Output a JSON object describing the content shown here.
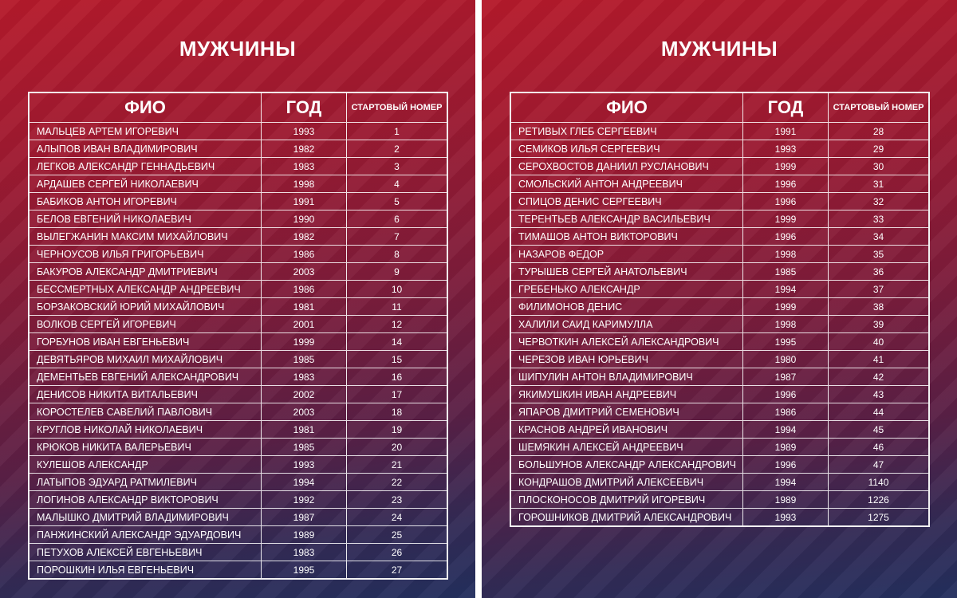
{
  "panels": [
    {
      "title": "МУЖЧИНЫ",
      "headers": {
        "name": "ФИО",
        "year": "ГОД",
        "num": "СТАРТОВЫЙ НОМЕР"
      },
      "rows": [
        [
          "МАЛЬЦЕВ АРТЕМ ИГОРЕВИЧ",
          "1993",
          "1"
        ],
        [
          "АЛЫПОВ ИВАН ВЛАДИМИРОВИЧ",
          "1982",
          "2"
        ],
        [
          "ЛЕГКОВ АЛЕКСАНДР ГЕННАДЬЕВИЧ",
          "1983",
          "3"
        ],
        [
          "АРДАШЕВ СЕРГЕЙ НИКОЛАЕВИЧ",
          "1998",
          "4"
        ],
        [
          "БАБИКОВ АНТОН ИГОРЕВИЧ",
          "1991",
          "5"
        ],
        [
          "БЕЛОВ ЕВГЕНИЙ НИКОЛАЕВИЧ",
          "1990",
          "6"
        ],
        [
          "ВЫЛЕГЖАНИН МАКСИМ МИХАЙЛОВИЧ",
          "1982",
          "7"
        ],
        [
          "ЧЕРНОУСОВ ИЛЬЯ ГРИГОРЬЕВИЧ",
          "1986",
          "8"
        ],
        [
          "БАКУРОВ АЛЕКСАНДР ДМИТРИЕВИЧ",
          "2003",
          "9"
        ],
        [
          "БЕССМЕРТНЫХ АЛЕКСАНДР АНДРЕЕВИЧ",
          "1986",
          "10"
        ],
        [
          "БОРЗАКОВСКИЙ ЮРИЙ МИХАЙЛОВИЧ",
          "1981",
          "11"
        ],
        [
          "ВОЛКОВ СЕРГЕЙ ИГОРЕВИЧ",
          "2001",
          "12"
        ],
        [
          "ГОРБУНОВ ИВАН ЕВГЕНЬЕВИЧ",
          "1999",
          "14"
        ],
        [
          "ДЕВЯТЬЯРОВ МИХАИЛ МИХАЙЛОВИЧ",
          "1985",
          "15"
        ],
        [
          "ДЕМЕНТЬЕВ ЕВГЕНИЙ АЛЕКСАНДРОВИЧ",
          "1983",
          "16"
        ],
        [
          "ДЕНИСОВ НИКИТА ВИТАЛЬЕВИЧ",
          "2002",
          "17"
        ],
        [
          "КОРОСТЕЛЕВ САВЕЛИЙ ПАВЛОВИЧ",
          "2003",
          "18"
        ],
        [
          "КРУГЛОВ НИКОЛАЙ НИКОЛАЕВИЧ",
          "1981",
          "19"
        ],
        [
          "КРЮКОВ НИКИТА ВАЛЕРЬЕВИЧ",
          "1985",
          "20"
        ],
        [
          "КУЛЕШОВ АЛЕКСАНДР",
          "1993",
          "21"
        ],
        [
          "ЛАТЫПОВ ЭДУАРД РАТМИЛЕВИЧ",
          "1994",
          "22"
        ],
        [
          "ЛОГИНОВ АЛЕКСАНДР ВИКТОРОВИЧ",
          "1992",
          "23"
        ],
        [
          "МАЛЫШКО ДМИТРИЙ ВЛАДИМИРОВИЧ",
          "1987",
          "24"
        ],
        [
          "ПАНЖИНСКИЙ АЛЕКСАНДР ЭДУАРДОВИЧ",
          "1989",
          "25"
        ],
        [
          "ПЕТУХОВ АЛЕКСЕЙ ЕВГЕНЬЕВИЧ",
          "1983",
          "26"
        ],
        [
          "ПОРОШКИН ИЛЬЯ ЕВГЕНЬЕВИЧ",
          "1995",
          "27"
        ]
      ]
    },
    {
      "title": "МУЖЧИНЫ",
      "headers": {
        "name": "ФИО",
        "year": "ГОД",
        "num": "СТАРТОВЫЙ НОМЕР"
      },
      "rows": [
        [
          "РЕТИВЫХ ГЛЕБ СЕРГЕЕВИЧ",
          "1991",
          "28"
        ],
        [
          "СЕМИКОВ ИЛЬЯ СЕРГЕЕВИЧ",
          "1993",
          "29"
        ],
        [
          "СЕРОХВОСТОВ ДАНИИЛ РУСЛАНОВИЧ",
          "1999",
          "30"
        ],
        [
          "СМОЛЬСКИЙ АНТОН АНДРЕЕВИЧ",
          "1996",
          "31"
        ],
        [
          "СПИЦОВ ДЕНИС СЕРГЕЕВИЧ",
          "1996",
          "32"
        ],
        [
          "ТЕРЕНТЬЕВ АЛЕКСАНДР ВАСИЛЬЕВИЧ",
          "1999",
          "33"
        ],
        [
          "ТИМАШОВ АНТОН ВИКТОРОВИЧ",
          "1996",
          "34"
        ],
        [
          "НАЗАРОВ ФЕДОР",
          "1998",
          "35"
        ],
        [
          "ТУРЫШЕВ СЕРГЕЙ АНАТОЛЬЕВИЧ",
          "1985",
          "36"
        ],
        [
          "ГРЕБЕНЬКО АЛЕКСАНДР",
          "1994",
          "37"
        ],
        [
          "ФИЛИМОНОВ ДЕНИС",
          "1999",
          "38"
        ],
        [
          "ХАЛИЛИ САИД КАРИМУЛЛА",
          "1998",
          "39"
        ],
        [
          "ЧЕРВОТКИН АЛЕКСЕЙ АЛЕКСАНДРОВИЧ",
          "1995",
          "40"
        ],
        [
          "ЧЕРЕЗОВ ИВАН ЮРЬЕВИЧ",
          "1980",
          "41"
        ],
        [
          "ШИПУЛИН АНТОН ВЛАДИМИРОВИЧ",
          "1987",
          "42"
        ],
        [
          "ЯКИМУШКИН ИВАН АНДРЕЕВИЧ",
          "1996",
          "43"
        ],
        [
          "ЯПАРОВ ДМИТРИЙ СЕМЕНОВИЧ",
          "1986",
          "44"
        ],
        [
          "КРАСНОВ АНДРЕЙ ИВАНОВИЧ",
          "1994",
          "45"
        ],
        [
          "ШЕМЯКИН АЛЕКСЕЙ АНДРЕЕВИЧ",
          "1989",
          "46"
        ],
        [
          "БОЛЬШУНОВ АЛЕКСАНДР АЛЕКСАНДРОВИЧ",
          "1996",
          "47"
        ],
        [
          "КОНДРАШОВ ДМИТРИЙ АЛЕКСЕЕВИЧ",
          "1994",
          "1140"
        ],
        [
          "ПЛОСКОНОСОВ ДМИТРИЙ ИГОРЕВИЧ",
          "1989",
          "1226"
        ],
        [
          "ГОРОШНИКОВ ДМИТРИЙ АЛЕКСАНДРОВИЧ",
          "1993",
          "1275"
        ]
      ]
    }
  ]
}
